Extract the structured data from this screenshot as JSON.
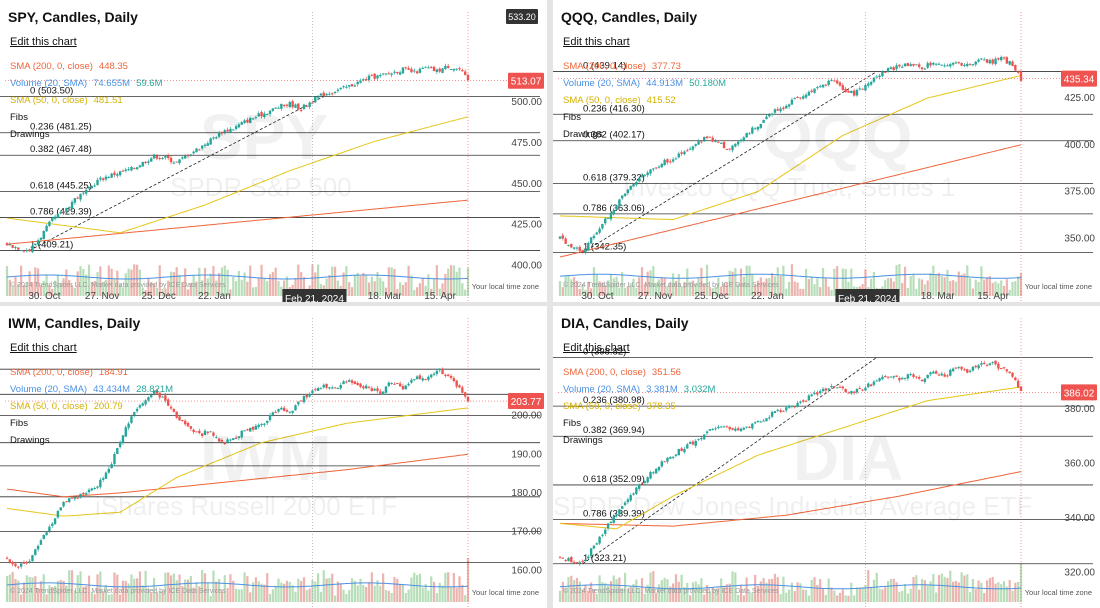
{
  "crosshair_date": "Feb 21, 2024",
  "local_time_label": "Your local time zone",
  "attribution": "© 2024 TrendSpider LLC. Market data provided by ICE Data Services",
  "legend_labels": {
    "fibs": "Fibs",
    "drawings": "Drawings",
    "edit": "Edit this chart"
  },
  "colors": {
    "up": "#26a69a",
    "down": "#ef5350",
    "sma200": "#f0643a",
    "sma50": "#e6c619",
    "volume_sma": "#4a90e2",
    "last_price_bg": "#ef5350"
  },
  "panels": [
    {
      "id": "spy",
      "title": "SPY, Candles, Daily",
      "watermark_symbol": "SPY",
      "watermark_name": "SPDR S&P 500",
      "sma200": {
        "label": "SMA (200, 0, close)",
        "value": "448.35"
      },
      "volume": {
        "label": "Volume (20, SMA)",
        "value1": "74.655M",
        "value2": "59.6M"
      },
      "sma50": {
        "label": "SMA (50, 0, close)",
        "value": "481.51"
      },
      "last_price": "513.07",
      "hover_price": "533.20",
      "x_labels": [
        "30. Oct",
        "27. Nov",
        "25. Dec",
        "22. Jan",
        "18. Mar",
        "15. Apr"
      ],
      "chart_data": {
        "type": "candlestick",
        "x_range": [
          "2023-10-23",
          "2024-04-20"
        ],
        "y_range": [
          396,
          538
        ],
        "y_ticks": [
          "400.00",
          "425.00",
          "450.00",
          "475.00",
          "500.00"
        ],
        "close_path": [
          [
            0,
            413
          ],
          [
            4,
            411
          ],
          [
            8,
            409.21
          ],
          [
            12,
            418
          ],
          [
            16,
            428
          ],
          [
            20,
            433
          ],
          [
            24,
            441
          ],
          [
            28,
            445
          ],
          [
            32,
            452
          ],
          [
            36,
            455
          ],
          [
            40,
            457
          ],
          [
            44,
            459
          ],
          [
            48,
            463
          ],
          [
            52,
            467
          ],
          [
            56,
            466
          ],
          [
            60,
            463
          ],
          [
            64,
            468
          ],
          [
            68,
            472
          ],
          [
            72,
            477
          ],
          [
            76,
            482
          ],
          [
            80,
            484
          ],
          [
            84,
            488
          ],
          [
            88,
            491
          ],
          [
            92,
            494
          ],
          [
            96,
            497
          ],
          [
            100,
            499
          ],
          [
            104,
            496
          ],
          [
            108,
            501
          ],
          [
            112,
            505
          ],
          [
            116,
            507
          ],
          [
            120,
            509
          ],
          [
            124,
            512
          ],
          [
            128,
            515
          ],
          [
            132,
            516
          ],
          [
            136,
            518
          ],
          [
            140,
            520
          ],
          [
            144,
            518
          ],
          [
            148,
            521
          ],
          [
            152,
            519
          ],
          [
            156,
            522
          ],
          [
            160,
            520
          ],
          [
            163,
            513.07
          ]
        ],
        "fibs": [
          {
            "label": "0 (503.50)",
            "value": 503.5
          },
          {
            "label": "0.236 (481.25)",
            "value": 481.25
          },
          {
            "label": "0.382 (467.48)",
            "value": 467.48
          },
          {
            "label": "0.618 (445.25)",
            "value": 445.25
          },
          {
            "label": "0.786 (429.39)",
            "value": 429.39
          },
          {
            "label": "1 (409.21)",
            "value": 409.21
          }
        ],
        "sma200_path": [
          [
            0,
            413
          ],
          [
            163,
            440
          ]
        ],
        "sma50_path": [
          [
            0,
            429
          ],
          [
            40,
            420
          ],
          [
            70,
            437
          ],
          [
            100,
            458
          ],
          [
            130,
            476
          ],
          [
            163,
            491
          ]
        ],
        "volume_sma": 0.5
      }
    },
    {
      "id": "qqq",
      "title": "QQQ, Candles, Daily",
      "watermark_symbol": "QQQ",
      "watermark_name": "Invesco QQQ Trust, Series 1",
      "sma200": {
        "label": "SMA (200, 0, close)",
        "value": "377.73"
      },
      "volume": {
        "label": "Volume (20, SMA)",
        "value1": "44.913M",
        "value2": "50.180M"
      },
      "sma50": {
        "label": "SMA (50, 0, close)",
        "value": "415.52"
      },
      "last_price": "435.34",
      "hover_price": "",
      "x_labels": [
        "30. Oct",
        "27. Nov",
        "25. Dec",
        "22. Jan",
        "18. Mar",
        "15. Apr"
      ],
      "chart_data": {
        "type": "candlestick",
        "x_range": [
          "2023-10-23",
          "2024-04-20"
        ],
        "y_range": [
          332,
          456
        ],
        "y_ticks": [
          "350.00",
          "375.00",
          "400.00",
          "425.00"
        ],
        "close_path": [
          [
            0,
            350
          ],
          [
            4,
            346
          ],
          [
            8,
            342.35
          ],
          [
            12,
            352
          ],
          [
            16,
            360
          ],
          [
            20,
            368
          ],
          [
            24,
            376
          ],
          [
            28,
            383
          ],
          [
            32,
            387
          ],
          [
            36,
            390
          ],
          [
            40,
            393
          ],
          [
            44,
            396
          ],
          [
            48,
            400
          ],
          [
            52,
            404
          ],
          [
            56,
            401
          ],
          [
            60,
            397
          ],
          [
            64,
            403
          ],
          [
            68,
            408
          ],
          [
            72,
            413
          ],
          [
            76,
            418
          ],
          [
            80,
            421
          ],
          [
            84,
            425
          ],
          [
            88,
            428
          ],
          [
            92,
            431
          ],
          [
            96,
            434
          ],
          [
            100,
            430
          ],
          [
            104,
            427
          ],
          [
            108,
            432
          ],
          [
            112,
            437
          ],
          [
            116,
            440
          ],
          [
            120,
            442
          ],
          [
            124,
            443
          ],
          [
            128,
            441
          ],
          [
            132,
            444
          ],
          [
            136,
            442
          ],
          [
            140,
            445
          ],
          [
            144,
            442
          ],
          [
            148,
            446
          ],
          [
            152,
            444
          ],
          [
            156,
            446
          ],
          [
            160,
            443
          ],
          [
            163,
            435.34
          ]
        ],
        "fibs": [
          {
            "label": "0 (439.14)",
            "value": 439.14
          },
          {
            "label": "0.236 (416.30)",
            "value": 416.3
          },
          {
            "label": "0.382 (402.17)",
            "value": 402.17
          },
          {
            "label": "0.618 (379.32)",
            "value": 379.32
          },
          {
            "label": "0.786 (363.06)",
            "value": 363.06
          },
          {
            "label": "1 (342.35)",
            "value": 342.35
          }
        ],
        "sma200_path": [
          [
            0,
            340
          ],
          [
            163,
            400
          ]
        ],
        "sma50_path": [
          [
            0,
            362
          ],
          [
            40,
            360
          ],
          [
            70,
            375
          ],
          [
            100,
            405
          ],
          [
            130,
            425
          ],
          [
            163,
            437
          ]
        ],
        "volume_sma": 0.52
      }
    },
    {
      "id": "iwm",
      "title": "IWM, Candles, Daily",
      "watermark_symbol": "IWM",
      "watermark_name": "iShares Russell 2000 ETF",
      "sma200": {
        "label": "SMA (200, 0, close)",
        "value": "184.91"
      },
      "volume": {
        "label": "Volume (20, SMA)",
        "value1": "43.434M",
        "value2": "28.821M"
      },
      "sma50": {
        "label": "SMA (50, 0, close)",
        "value": "200.79"
      },
      "last_price": "203.77",
      "hover_price": "",
      "x_labels": [],
      "chart_data": {
        "type": "candlestick",
        "x_range": [
          "2023-10-23",
          "2024-04-20"
        ],
        "y_range": [
          158,
          218
        ],
        "y_ticks": [
          "160.00",
          "170.00",
          "180.00",
          "190.00",
          "200.00"
        ],
        "close_path": [
          [
            0,
            163
          ],
          [
            4,
            161
          ],
          [
            8,
            162
          ],
          [
            12,
            168
          ],
          [
            16,
            172
          ],
          [
            20,
            178
          ],
          [
            24,
            179
          ],
          [
            28,
            180
          ],
          [
            32,
            182
          ],
          [
            36,
            186
          ],
          [
            40,
            193
          ],
          [
            44,
            200
          ],
          [
            48,
            203
          ],
          [
            52,
            206
          ],
          [
            56,
            204
          ],
          [
            60,
            200
          ],
          [
            64,
            197
          ],
          [
            68,
            195
          ],
          [
            72,
            196
          ],
          [
            76,
            193
          ],
          [
            80,
            194
          ],
          [
            84,
            196
          ],
          [
            88,
            197
          ],
          [
            92,
            199
          ],
          [
            96,
            202
          ],
          [
            100,
            201
          ],
          [
            104,
            204
          ],
          [
            108,
            206
          ],
          [
            112,
            208
          ],
          [
            116,
            207
          ],
          [
            120,
            209
          ],
          [
            124,
            208
          ],
          [
            128,
            207
          ],
          [
            132,
            206
          ],
          [
            136,
            209
          ],
          [
            140,
            207
          ],
          [
            144,
            210
          ],
          [
            148,
            209
          ],
          [
            152,
            212
          ],
          [
            156,
            210
          ],
          [
            160,
            207
          ],
          [
            163,
            203.77
          ]
        ],
        "fibs": [
          {
            "label": "",
            "value": 212.0
          },
          {
            "label": "",
            "value": 205.5
          },
          {
            "label": "",
            "value": 200.0
          },
          {
            "label": "",
            "value": 193.0
          },
          {
            "label": "",
            "value": 187.0
          },
          {
            "label": "",
            "value": 179.0
          },
          {
            "label": "",
            "value": 170.0
          },
          {
            "label": "",
            "value": 162.0
          }
        ],
        "sma200_path": [
          [
            0,
            181
          ],
          [
            20,
            179
          ],
          [
            40,
            180
          ],
          [
            80,
            183
          ],
          [
            120,
            186
          ],
          [
            163,
            190
          ]
        ],
        "sma50_path": [
          [
            0,
            176
          ],
          [
            20,
            174
          ],
          [
            40,
            175
          ],
          [
            60,
            184
          ],
          [
            90,
            193
          ],
          [
            120,
            198
          ],
          [
            163,
            202
          ]
        ],
        "volume_sma": 0.45
      }
    },
    {
      "id": "dia",
      "title": "DIA, Candles, Daily",
      "watermark_symbol": "DIA",
      "watermark_name": "SPDR Dow Jones Industrial Average ETF",
      "sma200": {
        "label": "SMA (200, 0, close)",
        "value": "351.56"
      },
      "volume": {
        "label": "Volume (20, SMA)",
        "value1": "3.381M",
        "value2": "3.032M"
      },
      "sma50": {
        "label": "SMA (50, 0, close)",
        "value": "378.35"
      },
      "last_price": "386.02",
      "hover_price": "",
      "x_labels": [],
      "chart_data": {
        "type": "candlestick",
        "x_range": [
          "2023-10-23",
          "2024-04-20"
        ],
        "y_range": [
          318,
          403
        ],
        "y_ticks": [
          "320.00",
          "340.00",
          "360.00",
          "380.00"
        ],
        "close_path": [
          [
            0,
            326
          ],
          [
            4,
            324
          ],
          [
            8,
            323.21
          ],
          [
            12,
            330
          ],
          [
            16,
            336
          ],
          [
            20,
            342
          ],
          [
            24,
            347
          ],
          [
            28,
            352
          ],
          [
            32,
            356
          ],
          [
            36,
            360
          ],
          [
            40,
            363
          ],
          [
            44,
            366
          ],
          [
            48,
            368
          ],
          [
            52,
            372
          ],
          [
            56,
            374
          ],
          [
            60,
            373
          ],
          [
            64,
            372
          ],
          [
            68,
            374
          ],
          [
            72,
            376
          ],
          [
            76,
            379
          ],
          [
            80,
            380
          ],
          [
            84,
            382
          ],
          [
            88,
            384
          ],
          [
            92,
            386
          ],
          [
            96,
            388
          ],
          [
            100,
            387
          ],
          [
            104,
            386
          ],
          [
            108,
            388
          ],
          [
            112,
            390
          ],
          [
            116,
            392
          ],
          [
            120,
            391
          ],
          [
            124,
            393
          ],
          [
            128,
            391
          ],
          [
            132,
            393
          ],
          [
            136,
            392
          ],
          [
            140,
            395
          ],
          [
            144,
            394
          ],
          [
            148,
            396
          ],
          [
            152,
            397
          ],
          [
            156,
            395
          ],
          [
            160,
            392
          ],
          [
            163,
            386.02
          ]
        ],
        "fibs": [
          {
            "label": "0 (398.82)",
            "value": 398.82
          },
          {
            "label": "0.236 (380.98)",
            "value": 380.98
          },
          {
            "label": "0.382 (369.94)",
            "value": 369.94
          },
          {
            "label": "0.618 (352.09)",
            "value": 352.09
          },
          {
            "label": "0.786 (339.39)",
            "value": 339.39
          },
          {
            "label": "1 (323.21)",
            "value": 323.21
          }
        ],
        "sma200_path": [
          [
            0,
            338
          ],
          [
            40,
            337
          ],
          [
            80,
            341
          ],
          [
            120,
            348
          ],
          [
            163,
            357
          ]
        ],
        "sma50_path": [
          [
            0,
            338
          ],
          [
            20,
            336
          ],
          [
            40,
            348
          ],
          [
            70,
            363
          ],
          [
            100,
            373
          ],
          [
            130,
            383
          ],
          [
            163,
            388
          ]
        ],
        "volume_sma": 0.4
      }
    }
  ]
}
